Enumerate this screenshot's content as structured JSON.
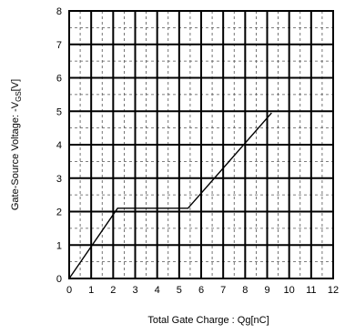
{
  "chart_data": {
    "type": "line",
    "xlabel": "Total Gate Charge : Qg[nC]",
    "ylabel_main": "Gate-Source Voltage: -V",
    "ylabel_sub": "GS",
    "ylabel_unit": "[V]",
    "xlim": [
      0,
      12
    ],
    "ylim": [
      0,
      8
    ],
    "x_ticks": [
      "0",
      "1",
      "2",
      "3",
      "4",
      "5",
      "6",
      "7",
      "8",
      "9",
      "10",
      "11",
      "12"
    ],
    "y_ticks": [
      "0",
      "1",
      "2",
      "3",
      "4",
      "5",
      "6",
      "7",
      "8"
    ],
    "grid": true,
    "series": [
      {
        "x": [
          0,
          2.2,
          5.4,
          9.2
        ],
        "y": [
          0,
          2.1,
          2.1,
          4.95
        ]
      }
    ]
  }
}
